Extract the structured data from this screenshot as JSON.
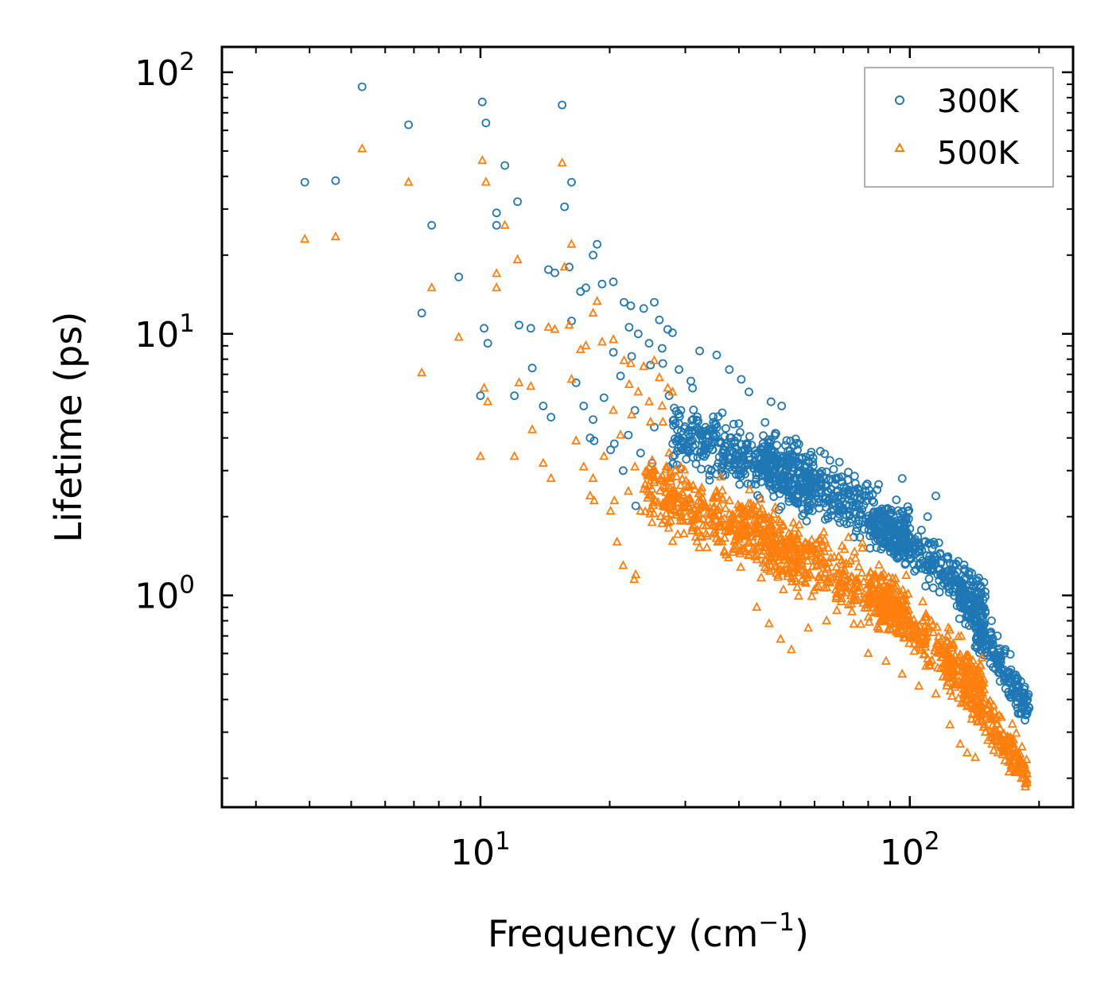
{
  "chart_data": {
    "type": "scatter",
    "title": "",
    "xlabel": "Frequency (cm",
    "xlabel_sup": "−1",
    "xlabel_suffix": ")",
    "ylabel": "Lifetime (ps)",
    "xscale": "log",
    "yscale": "log",
    "xlim": [
      2.5,
      240
    ],
    "ylim": [
      0.155,
      125
    ],
    "x_ticks": [
      {
        "value": 10,
        "base": "10",
        "exp": "1"
      },
      {
        "value": 100,
        "base": "10",
        "exp": "2"
      }
    ],
    "y_ticks": [
      {
        "value": 1,
        "base": "10",
        "exp": "0"
      },
      {
        "value": 10,
        "base": "10",
        "exp": "1"
      },
      {
        "value": 100,
        "base": "10",
        "exp": "2"
      }
    ],
    "legend_position": "top-right",
    "series": [
      {
        "name": "300K",
        "marker": "circle",
        "color": "#1f77b4",
        "points": [
          [
            3.9,
            38
          ],
          [
            4.6,
            38.5
          ],
          [
            5.3,
            88
          ],
          [
            6.8,
            63
          ],
          [
            7.7,
            26
          ],
          [
            7.3,
            12
          ],
          [
            8.9,
            16.5
          ],
          [
            10.1,
            77
          ],
          [
            10.3,
            64
          ],
          [
            11.4,
            44
          ],
          [
            12.2,
            32
          ],
          [
            10.9,
            29
          ],
          [
            10.9,
            26
          ],
          [
            10.2,
            10.5
          ],
          [
            10.4,
            9.2
          ],
          [
            10.0,
            5.8
          ],
          [
            12.0,
            5.8
          ],
          [
            12.3,
            10.8
          ],
          [
            13.1,
            10.5
          ],
          [
            13.2,
            7.4
          ],
          [
            14.4,
            17.6
          ],
          [
            14.9,
            17.1
          ],
          [
            15.5,
            75
          ],
          [
            15.7,
            30.6
          ],
          [
            16.3,
            38
          ],
          [
            16.1,
            18
          ],
          [
            17.1,
            14.5
          ],
          [
            17.6,
            15
          ],
          [
            18.3,
            20
          ],
          [
            18.7,
            22
          ],
          [
            14.6,
            4.8
          ],
          [
            14.0,
            5.3
          ],
          [
            16.7,
            6.5
          ],
          [
            17.4,
            5.3
          ],
          [
            18.0,
            4.0
          ],
          [
            18.3,
            4.7
          ],
          [
            16.3,
            11.2
          ],
          [
            19.2,
            15.5
          ],
          [
            20.4,
            15.8
          ],
          [
            21.6,
            13.2
          ],
          [
            22.4,
            12.8
          ],
          [
            24.0,
            12.5
          ],
          [
            25.4,
            13.2
          ],
          [
            26.1,
            11.3
          ],
          [
            27.3,
            10.4
          ],
          [
            28.0,
            10.1
          ],
          [
            22.2,
            10.6
          ],
          [
            23.3,
            10.0
          ],
          [
            24.7,
            9.2
          ],
          [
            26.5,
            8.8
          ],
          [
            20.4,
            8.5
          ],
          [
            22.5,
            8.2
          ],
          [
            24.9,
            7.6
          ],
          [
            26.6,
            7.7
          ],
          [
            29.0,
            7.3
          ],
          [
            30.9,
            6.6
          ],
          [
            32.4,
            8.6
          ],
          [
            35.5,
            8.3
          ],
          [
            38.0,
            7.3
          ],
          [
            40.5,
            6.7
          ],
          [
            42.2,
            6.0
          ],
          [
            47.5,
            5.5
          ],
          [
            50.3,
            5.3
          ],
          [
            19.4,
            5.7
          ],
          [
            21.2,
            6.9
          ],
          [
            22.9,
            5.1
          ],
          [
            25.4,
            4.4
          ],
          [
            27.5,
            5.8
          ],
          [
            29.3,
            5.1
          ],
          [
            31.2,
            6.2
          ],
          [
            20.5,
            3.8
          ],
          [
            22.1,
            4.1
          ],
          [
            23.6,
            3.5
          ],
          [
            25.1,
            3.2
          ],
          [
            27.4,
            3.1
          ],
          [
            29.5,
            3.6
          ],
          [
            18.4,
            3.9
          ],
          [
            20.1,
            3.6
          ],
          [
            21.5,
            3.0
          ],
          [
            23.0,
            2.2
          ],
          [
            96,
            2.8
          ],
          [
            110,
            2.0
          ],
          [
            115,
            2.4
          ],
          [
            122,
            1.4
          ],
          [
            108,
            1.6
          ],
          [
            100,
            1.8
          ],
          [
            131,
            1.1
          ],
          [
            140,
            1.0
          ],
          [
            148,
            0.9
          ],
          [
            155,
            0.8
          ],
          [
            160,
            0.7
          ],
          [
            166,
            0.6
          ],
          [
            172,
            0.52
          ],
          [
            178,
            0.45
          ],
          [
            182,
            0.38
          ],
          [
            186,
            0.35
          ]
        ],
        "bands": [
          {
            "x0": 28,
            "x1": 60,
            "ylog0": 4.2,
            "ylog1": 2.6,
            "spread": 0.55,
            "count": 380
          },
          {
            "x0": 45,
            "x1": 100,
            "ylog0": 3.4,
            "ylog1": 1.7,
            "spread": 0.55,
            "count": 420
          },
          {
            "x0": 80,
            "x1": 150,
            "ylog0": 2.0,
            "ylog1": 0.95,
            "spread": 0.45,
            "count": 320
          },
          {
            "x0": 130,
            "x1": 190,
            "ylog0": 1.0,
            "ylog1": 0.36,
            "spread": 0.35,
            "count": 240
          }
        ]
      },
      {
        "name": "500K",
        "marker": "triangle",
        "color": "#ff7f0e",
        "points": [
          [
            3.9,
            23
          ],
          [
            4.6,
            23.5
          ],
          [
            5.3,
            51
          ],
          [
            6.8,
            38
          ],
          [
            7.7,
            15
          ],
          [
            7.3,
            7.1
          ],
          [
            8.9,
            9.7
          ],
          [
            10.1,
            46
          ],
          [
            10.3,
            38
          ],
          [
            11.4,
            26
          ],
          [
            12.2,
            19.2
          ],
          [
            10.9,
            17
          ],
          [
            10.9,
            15
          ],
          [
            10.2,
            6.2
          ],
          [
            10.4,
            5.5
          ],
          [
            10.0,
            3.4
          ],
          [
            12.0,
            3.4
          ],
          [
            12.3,
            6.5
          ],
          [
            13.1,
            6.3
          ],
          [
            13.2,
            4.3
          ],
          [
            14.4,
            10.6
          ],
          [
            14.9,
            10.4
          ],
          [
            15.5,
            45
          ],
          [
            15.7,
            18
          ],
          [
            16.3,
            22
          ],
          [
            16.1,
            10.8
          ],
          [
            17.1,
            8.7
          ],
          [
            17.6,
            9.0
          ],
          [
            18.3,
            12.0
          ],
          [
            18.7,
            13.3
          ],
          [
            14.6,
            2.8
          ],
          [
            14.0,
            3.2
          ],
          [
            16.7,
            3.9
          ],
          [
            17.4,
            3.1
          ],
          [
            18.0,
            2.4
          ],
          [
            18.3,
            2.8
          ],
          [
            16.3,
            6.7
          ],
          [
            19.2,
            9.3
          ],
          [
            20.4,
            9.5
          ],
          [
            21.6,
            7.9
          ],
          [
            22.4,
            7.7
          ],
          [
            24.0,
            7.5
          ],
          [
            25.4,
            7.9
          ],
          [
            26.1,
            6.8
          ],
          [
            27.3,
            6.2
          ],
          [
            28.0,
            6.0
          ],
          [
            22.2,
            6.4
          ],
          [
            23.3,
            6.0
          ],
          [
            24.7,
            5.5
          ],
          [
            26.5,
            5.3
          ],
          [
            20.4,
            5.1
          ],
          [
            22.5,
            4.9
          ],
          [
            24.9,
            4.6
          ],
          [
            26.6,
            4.6
          ],
          [
            19.4,
            3.4
          ],
          [
            21.2,
            4.1
          ],
          [
            22.9,
            3.1
          ],
          [
            25.4,
            2.7
          ],
          [
            27.5,
            3.5
          ],
          [
            29.3,
            3.1
          ],
          [
            20.5,
            2.3
          ],
          [
            22.1,
            2.5
          ],
          [
            23.6,
            2.1
          ],
          [
            25.1,
            1.9
          ],
          [
            27.4,
            1.9
          ],
          [
            29.5,
            2.2
          ],
          [
            18.4,
            2.3
          ],
          [
            20.1,
            2.1
          ],
          [
            21.5,
            1.3
          ],
          [
            23.0,
            1.2
          ],
          [
            22.8,
            1.15
          ],
          [
            20.8,
            1.6
          ],
          [
            44,
            0.9
          ],
          [
            47,
            0.78
          ],
          [
            50,
            0.68
          ],
          [
            53,
            0.62
          ],
          [
            58,
            0.75
          ],
          [
            64,
            0.8
          ],
          [
            72,
            0.92
          ],
          [
            80,
            0.6
          ],
          [
            88,
            0.56
          ],
          [
            96,
            0.5
          ],
          [
            105,
            0.45
          ],
          [
            115,
            0.42
          ],
          [
            124,
            0.32
          ],
          [
            131,
            0.27
          ],
          [
            136,
            0.25
          ],
          [
            142,
            0.24
          ],
          [
            150,
            0.3
          ],
          [
            158,
            0.28
          ],
          [
            166,
            0.26
          ],
          [
            172,
            0.23
          ],
          [
            178,
            0.21
          ],
          [
            184,
            0.2
          ],
          [
            186,
            0.19
          ]
        ],
        "bands": [
          {
            "x0": 24,
            "x1": 55,
            "ylog0": 2.6,
            "ylog1": 1.4,
            "spread": 0.6,
            "count": 380
          },
          {
            "x0": 40,
            "x1": 100,
            "ylog0": 1.9,
            "ylog1": 0.85,
            "spread": 0.6,
            "count": 420
          },
          {
            "x0": 80,
            "x1": 150,
            "ylog0": 1.05,
            "ylog1": 0.45,
            "spread": 0.5,
            "count": 320
          },
          {
            "x0": 120,
            "x1": 188,
            "ylog0": 0.55,
            "ylog1": 0.21,
            "spread": 0.4,
            "count": 240
          }
        ]
      }
    ]
  }
}
